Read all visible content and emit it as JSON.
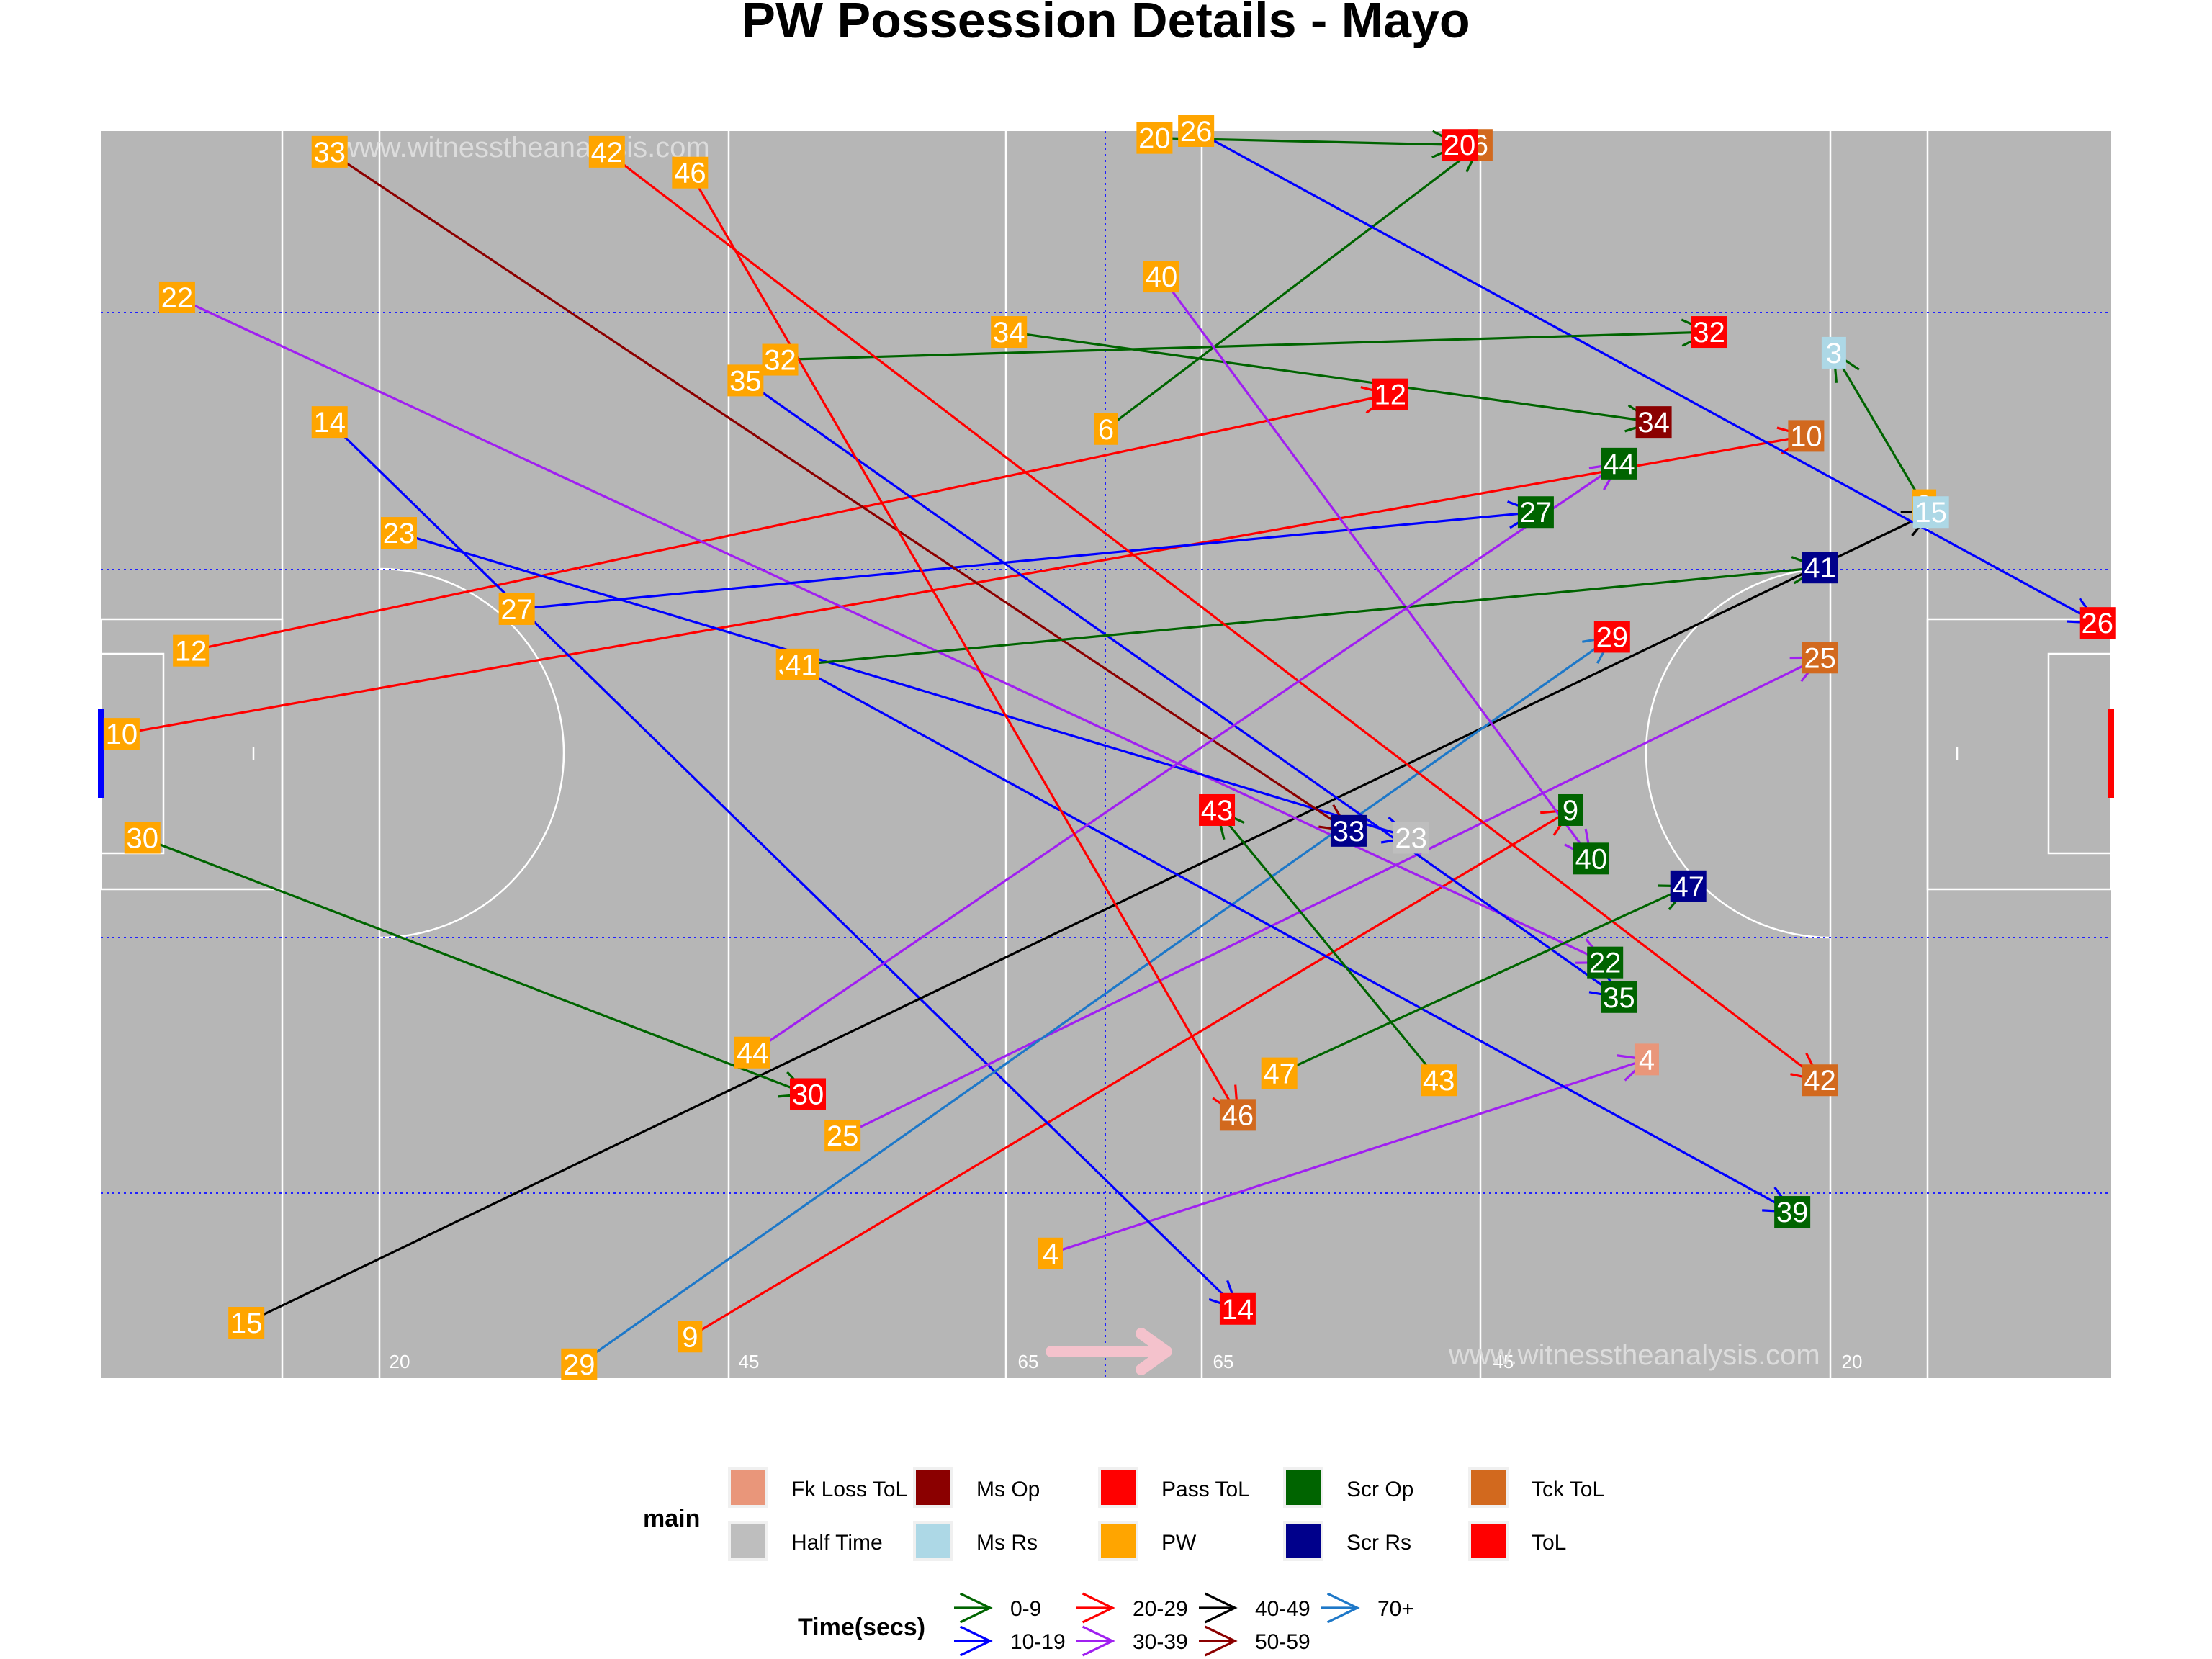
{
  "title": "PW Possession Details - Mayo",
  "watermark": "www.witnesstheanalysis.com",
  "pitch_markers": [
    "20",
    "45",
    "65",
    "65",
    "45",
    "20"
  ],
  "chart_data": {
    "type": "scatter",
    "title": "PW Possession Details - Mayo",
    "xlim": [
      0,
      145
    ],
    "ylim": [
      0,
      90
    ],
    "grid": false,
    "legend_placement": "bottom",
    "main_colors": {
      "Fk Loss ToL": "#E9967A",
      "Half Time": "#BEBEBE",
      "Ms Op": "#8B0000",
      "Ms Rs": "#ADD8E6",
      "Pass ToL": "#FF0000",
      "PW": "#FFA500",
      "Scr Op": "#006400",
      "Scr Rs": "#00008B",
      "Tck ToL": "#D2691E",
      "ToL": "#FF0000"
    },
    "time_colors": {
      "0-9": "#006400",
      "10-19": "#0000FF",
      "20-29": "#FF0000",
      "30-39": "#A020F0",
      "40-49": "#000000",
      "50-59": "#8B0000",
      "70+": "#1E78C8"
    },
    "possessions": [
      {
        "id": "3",
        "start": [
          131.5,
          27
        ],
        "end": [
          125,
          16
        ],
        "outcome": "Ms Rs",
        "time": "0-9"
      },
      {
        "id": "4",
        "start": [
          68.5,
          81
        ],
        "end": [
          111.5,
          67
        ],
        "outcome": "Fk Loss ToL",
        "time": "30-39"
      },
      {
        "id": "6",
        "start": [
          72.5,
          21.5
        ],
        "end": [
          99.5,
          1
        ],
        "outcome": "Tck ToL",
        "time": "0-9"
      },
      {
        "id": "9",
        "start": [
          42.5,
          87
        ],
        "end": [
          106,
          49
        ],
        "outcome": "Scr Op",
        "time": "20-29"
      },
      {
        "id": "10",
        "start": [
          1.5,
          43.5
        ],
        "end": [
          123,
          22
        ],
        "outcome": "Tck ToL",
        "time": "20-29"
      },
      {
        "id": "12",
        "start": [
          6.5,
          37.5
        ],
        "end": [
          93,
          19
        ],
        "outcome": "Pass ToL",
        "time": "20-29"
      },
      {
        "id": "14",
        "start": [
          16.5,
          21
        ],
        "end": [
          82,
          85
        ],
        "outcome": "ToL",
        "time": "10-19"
      },
      {
        "id": "15",
        "start": [
          10.5,
          86
        ],
        "end": [
          132,
          27.5
        ],
        "outcome": "Ms Rs",
        "time": "40-49"
      },
      {
        "id": "20",
        "start": [
          76,
          0.5
        ],
        "end": [
          98,
          1
        ],
        "outcome": "ToL",
        "time": "0-9"
      },
      {
        "id": "22",
        "start": [
          5.5,
          12
        ],
        "end": [
          108.5,
          60
        ],
        "outcome": "Scr Op",
        "time": "30-39"
      },
      {
        "id": "23",
        "start": [
          21.5,
          29
        ],
        "end": [
          94.5,
          51
        ],
        "outcome": "Half Time",
        "time": "10-19"
      },
      {
        "id": "25",
        "start": [
          53.5,
          72.5
        ],
        "end": [
          124,
          38
        ],
        "outcome": "Tck ToL",
        "time": "30-39"
      },
      {
        "id": "26",
        "start": [
          79,
          0
        ],
        "end": [
          144,
          35.5
        ],
        "outcome": "ToL",
        "time": "10-19"
      },
      {
        "id": "27",
        "start": [
          30,
          34.5
        ],
        "end": [
          103.5,
          27.5
        ],
        "outcome": "Scr Op",
        "time": "10-19"
      },
      {
        "id": "29",
        "start": [
          34.5,
          89
        ],
        "end": [
          109,
          36.5
        ],
        "outcome": "ToL",
        "time": "70+"
      },
      {
        "id": "30",
        "start": [
          3,
          51
        ],
        "end": [
          51,
          69.5
        ],
        "outcome": "ToL",
        "time": "0-9"
      },
      {
        "id": "32",
        "start": [
          49,
          16.5
        ],
        "end": [
          116,
          14.5
        ],
        "outcome": "Pass ToL",
        "time": "0-9"
      },
      {
        "id": "33",
        "start": [
          16.5,
          1.5
        ],
        "end": [
          90,
          50.5
        ],
        "outcome": "Scr Rs",
        "time": "50-59"
      },
      {
        "id": "34",
        "start": [
          65.5,
          14.5
        ],
        "end": [
          112,
          21
        ],
        "outcome": "Ms Op",
        "time": "0-9"
      },
      {
        "id": "35",
        "start": [
          46.5,
          18
        ],
        "end": [
          109.5,
          62.5
        ],
        "outcome": "Scr Op",
        "time": "10-19"
      },
      {
        "id": "39",
        "start": [
          50,
          38.5
        ],
        "end": [
          122,
          78
        ],
        "outcome": "Scr Op",
        "time": "10-19"
      },
      {
        "id": "40",
        "start": [
          76.5,
          10.5
        ],
        "end": [
          107.5,
          52.5
        ],
        "outcome": "Scr Op",
        "time": "30-39"
      },
      {
        "id": "41",
        "start": [
          50.5,
          38.5
        ],
        "end": [
          124,
          31.5
        ],
        "outcome": "Scr Rs",
        "time": "0-9"
      },
      {
        "id": "42",
        "start": [
          36.5,
          1.5
        ],
        "end": [
          124,
          68.5
        ],
        "outcome": "Tck ToL",
        "time": "20-29"
      },
      {
        "id": "43",
        "start": [
          96.5,
          68.5
        ],
        "end": [
          80.5,
          49
        ],
        "outcome": "ToL",
        "time": "0-9"
      },
      {
        "id": "44",
        "start": [
          47,
          66.5
        ],
        "end": [
          109.5,
          24
        ],
        "outcome": "Scr Op",
        "time": "30-39"
      },
      {
        "id": "46",
        "start": [
          42.5,
          3
        ],
        "end": [
          82,
          71
        ],
        "outcome": "Tck ToL",
        "time": "20-29"
      },
      {
        "id": "47",
        "start": [
          85,
          68
        ],
        "end": [
          114.5,
          54.5
        ],
        "outcome": "Scr Rs",
        "time": "0-9"
      }
    ]
  },
  "legend": {
    "main_title": "main",
    "main_items": [
      {
        "label": "Fk Loss ToL",
        "color": "#E9967A"
      },
      {
        "label": "Half Time",
        "color": "#BEBEBE"
      },
      {
        "label": "Ms Op",
        "color": "#8B0000"
      },
      {
        "label": "Ms Rs",
        "color": "#ADD8E6"
      },
      {
        "label": "Pass ToL",
        "color": "#FF0000"
      },
      {
        "label": "PW",
        "color": "#FFA500"
      },
      {
        "label": "Scr Op",
        "color": "#006400"
      },
      {
        "label": "Scr Rs",
        "color": "#00008B"
      },
      {
        "label": "Tck ToL",
        "color": "#D2691E"
      },
      {
        "label": "ToL",
        "color": "#FF0000"
      }
    ],
    "time_title": "Time(secs)",
    "time_items": [
      {
        "label": "0-9",
        "color": "#006400"
      },
      {
        "label": "10-19",
        "color": "#0000FF"
      },
      {
        "label": "20-29",
        "color": "#FF0000"
      },
      {
        "label": "30-39",
        "color": "#A020F0"
      },
      {
        "label": "40-49",
        "color": "#000000"
      },
      {
        "label": "50-59",
        "color": "#8B0000"
      },
      {
        "label": "70+",
        "color": "#1E78C8"
      }
    ]
  }
}
